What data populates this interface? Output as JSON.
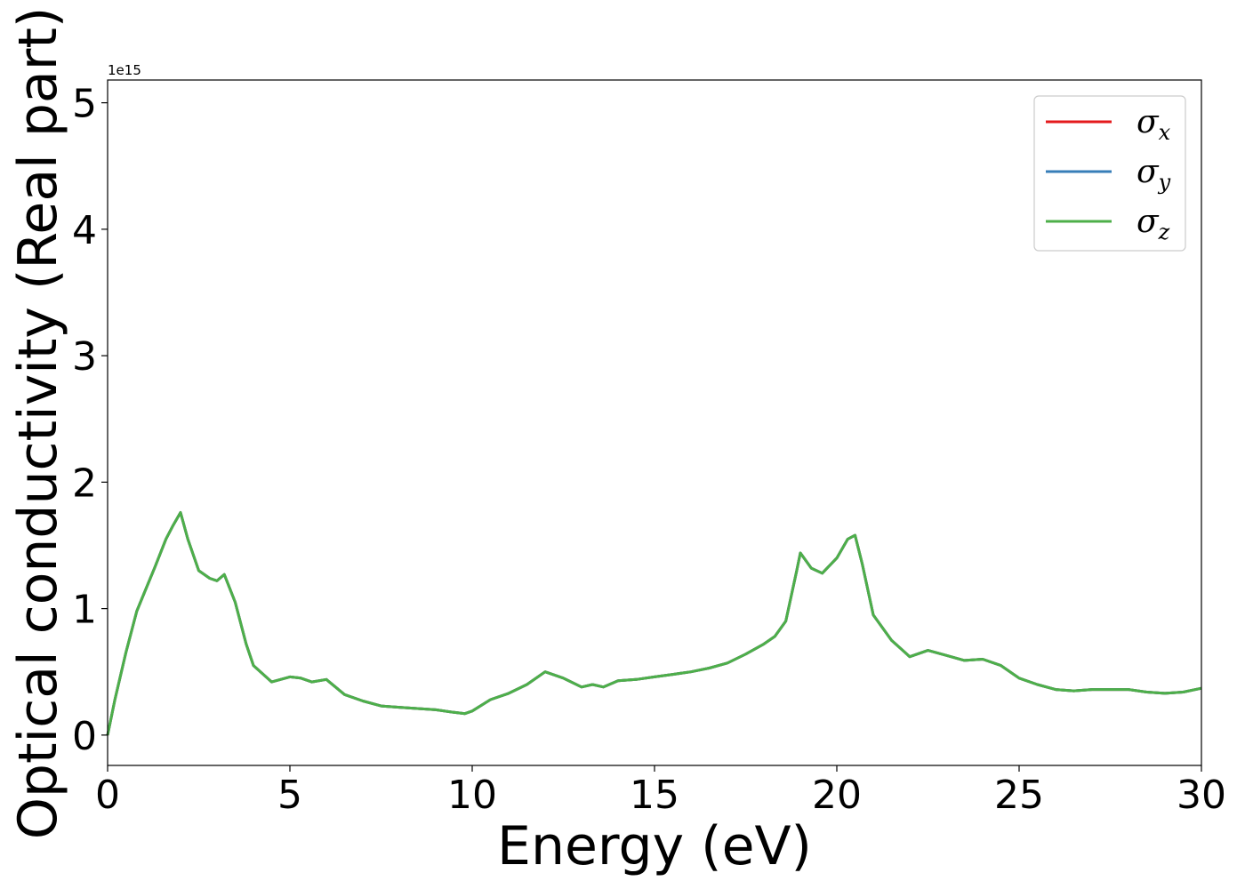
{
  "chart_data": {
    "type": "line",
    "xlabel": "Energy (eV)",
    "ylabel": "Optical conductivity (Real part)",
    "y_offset_label": "1e15",
    "xlim": [
      0,
      30
    ],
    "ylim": [
      -0.24,
      5.18
    ],
    "x_ticks": [
      0,
      5,
      10,
      15,
      20,
      25,
      30
    ],
    "y_ticks": [
      0,
      1,
      2,
      3,
      4,
      5
    ],
    "x_tick_labels": [
      "0",
      "5",
      "10",
      "15",
      "20",
      "25",
      "30"
    ],
    "y_tick_labels": [
      "0",
      "1",
      "2",
      "3",
      "4",
      "5"
    ],
    "grid": false,
    "legend_position": "top-right",
    "x": [
      0,
      0.2,
      0.5,
      0.8,
      1.0,
      1.3,
      1.6,
      1.8,
      2.0,
      2.2,
      2.5,
      2.8,
      3.0,
      3.2,
      3.5,
      3.8,
      4.0,
      4.5,
      5.0,
      5.3,
      5.6,
      6.0,
      6.5,
      7.0,
      7.5,
      8.0,
      8.5,
      9.0,
      9.5,
      9.8,
      10.0,
      10.5,
      11.0,
      11.5,
      12.0,
      12.5,
      13.0,
      13.3,
      13.6,
      14.0,
      14.5,
      15.0,
      15.5,
      16.0,
      16.5,
      17.0,
      17.5,
      18.0,
      18.3,
      18.6,
      18.9,
      19.0,
      19.3,
      19.6,
      20.0,
      20.3,
      20.5,
      20.7,
      21.0,
      21.5,
      22.0,
      22.5,
      23.0,
      23.5,
      24.0,
      24.5,
      25.0,
      25.5,
      26.0,
      26.5,
      27.0,
      27.5,
      28.0,
      28.5,
      29.0,
      29.5,
      30.0
    ],
    "series": [
      {
        "name": "σx",
        "label_symbol": "σ",
        "label_sub": "x",
        "color": "#e41a1c",
        "values": [
          0.0,
          0.28,
          0.65,
          0.98,
          1.12,
          1.33,
          1.55,
          1.66,
          1.76,
          1.55,
          1.3,
          1.24,
          1.22,
          1.27,
          1.05,
          0.72,
          0.55,
          0.42,
          0.46,
          0.45,
          0.42,
          0.44,
          0.32,
          0.27,
          0.23,
          0.22,
          0.21,
          0.2,
          0.18,
          0.17,
          0.19,
          0.28,
          0.33,
          0.4,
          0.5,
          0.45,
          0.38,
          0.4,
          0.38,
          0.43,
          0.44,
          0.46,
          0.48,
          0.5,
          0.53,
          0.57,
          0.64,
          0.72,
          0.78,
          0.9,
          1.3,
          1.44,
          1.32,
          1.28,
          1.4,
          1.55,
          1.58,
          1.35,
          0.95,
          0.75,
          0.62,
          0.67,
          0.63,
          0.59,
          0.6,
          0.55,
          0.45,
          0.4,
          0.36,
          0.35,
          0.36,
          0.36,
          0.36,
          0.34,
          0.33,
          0.34,
          0.37
        ]
      },
      {
        "name": "σy",
        "label_symbol": "σ",
        "label_sub": "y",
        "color": "#377eb8",
        "values": [
          0.0,
          0.28,
          0.65,
          0.98,
          1.12,
          1.33,
          1.55,
          1.66,
          1.76,
          1.55,
          1.3,
          1.24,
          1.22,
          1.27,
          1.05,
          0.72,
          0.55,
          0.42,
          0.46,
          0.45,
          0.42,
          0.44,
          0.32,
          0.27,
          0.23,
          0.22,
          0.21,
          0.2,
          0.18,
          0.17,
          0.19,
          0.28,
          0.33,
          0.4,
          0.5,
          0.45,
          0.38,
          0.4,
          0.38,
          0.43,
          0.44,
          0.46,
          0.48,
          0.5,
          0.53,
          0.57,
          0.64,
          0.72,
          0.78,
          0.9,
          1.3,
          1.44,
          1.32,
          1.28,
          1.4,
          1.55,
          1.58,
          1.35,
          0.95,
          0.75,
          0.62,
          0.67,
          0.63,
          0.59,
          0.6,
          0.55,
          0.45,
          0.4,
          0.36,
          0.35,
          0.36,
          0.36,
          0.36,
          0.34,
          0.33,
          0.34,
          0.37
        ]
      },
      {
        "name": "σz",
        "label_symbol": "σ",
        "label_sub": "z",
        "color": "#4daf4a",
        "values": [
          0.0,
          0.28,
          0.65,
          0.98,
          1.12,
          1.33,
          1.55,
          1.66,
          1.76,
          1.55,
          1.3,
          1.24,
          1.22,
          1.27,
          1.05,
          0.72,
          0.55,
          0.42,
          0.46,
          0.45,
          0.42,
          0.44,
          0.32,
          0.27,
          0.23,
          0.22,
          0.21,
          0.2,
          0.18,
          0.17,
          0.19,
          0.28,
          0.33,
          0.4,
          0.5,
          0.45,
          0.38,
          0.4,
          0.38,
          0.43,
          0.44,
          0.46,
          0.48,
          0.5,
          0.53,
          0.57,
          0.64,
          0.72,
          0.78,
          0.9,
          1.3,
          1.44,
          1.32,
          1.28,
          1.4,
          1.55,
          1.58,
          1.35,
          0.95,
          0.75,
          0.62,
          0.67,
          0.63,
          0.59,
          0.6,
          0.55,
          0.45,
          0.4,
          0.36,
          0.35,
          0.36,
          0.36,
          0.36,
          0.34,
          0.33,
          0.34,
          0.37
        ]
      }
    ]
  }
}
